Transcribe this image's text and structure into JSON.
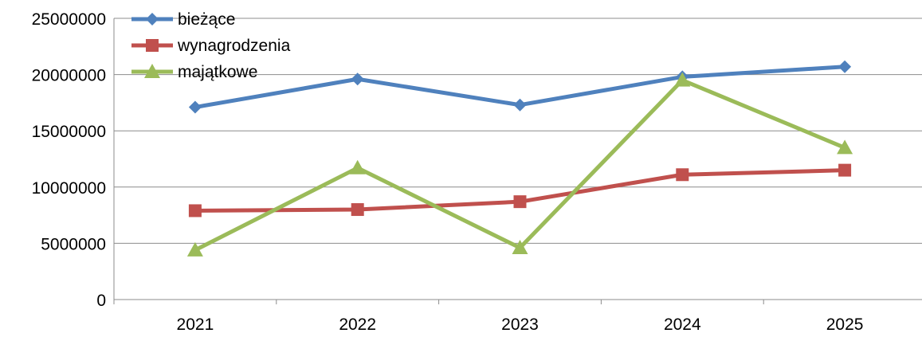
{
  "chart_data": {
    "type": "line",
    "categories": [
      "2021",
      "2022",
      "2023",
      "2024",
      "2025"
    ],
    "y_ticks": [
      "0",
      "5000000",
      "10000000",
      "15000000",
      "20000000",
      "25000000"
    ],
    "ylim": [
      0,
      25000000
    ],
    "grid": true,
    "legend_position": "top-left",
    "series": [
      {
        "name": "bieżące",
        "color": "#4F81BD",
        "marker": "diamond",
        "values": [
          17100000,
          19600000,
          17300000,
          19800000,
          20700000
        ]
      },
      {
        "name": "wynagrodzenia",
        "color": "#C0504D",
        "marker": "square",
        "values": [
          7900000,
          8000000,
          8700000,
          11100000,
          11500000
        ]
      },
      {
        "name": "majątkowe",
        "color": "#9BBB59",
        "marker": "triangle",
        "values": [
          4400000,
          11700000,
          4600000,
          19500000,
          13500000
        ]
      }
    ]
  }
}
